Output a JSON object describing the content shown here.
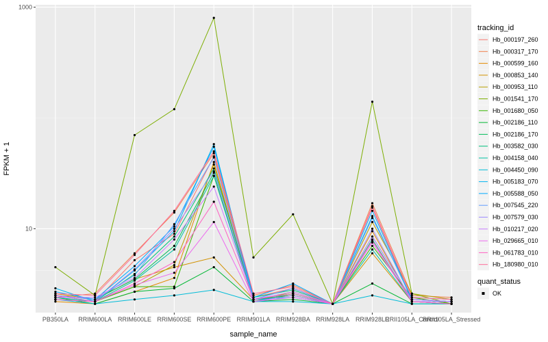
{
  "chart_data": {
    "type": "line",
    "title": "",
    "xlabel": "sample_name",
    "ylabel": "FPKM + 1",
    "y_scale": "log10",
    "ylim": [
      1.75,
      1050
    ],
    "y_ticks": [
      {
        "value": 10,
        "label": "10"
      },
      {
        "value": 1000,
        "label": "1000"
      }
    ],
    "grid": true,
    "panel_background": "#ebebeb",
    "categories": [
      "PB350LA",
      "RRIM600LA",
      "RRIM600LE",
      "RRIM600SE",
      "RRIM600PE",
      "RRIM901LA",
      "RRIM928BA",
      "RRIM928LA",
      "RRIM928LE",
      "RRII105LA_Control",
      "RRII105LA_Stressed"
    ],
    "legend": {
      "position": "right",
      "title": "tracking_id",
      "shape_title": "quant_status",
      "shape_entries": [
        "OK"
      ]
    },
    "series": [
      {
        "name": "Hb_000197_260",
        "color": "#F8766D",
        "values": [
          2.3,
          2.2,
          5.2,
          9.0,
          45,
          2.4,
          2.9,
          2.1,
          15.5,
          2.3,
          2.2
        ]
      },
      {
        "name": "Hb_000317_170",
        "color": "#F07F4B",
        "values": [
          2.4,
          2.6,
          6.0,
          14.0,
          48,
          2.5,
          3.1,
          2.1,
          17.0,
          2.5,
          2.4
        ]
      },
      {
        "name": "Hb_000599_160",
        "color": "#E38900",
        "values": [
          2.2,
          2.1,
          2.7,
          3.6,
          40,
          2.2,
          2.6,
          2.1,
          9.5,
          2.2,
          2.1
        ]
      },
      {
        "name": "Hb_000853_140",
        "color": "#D19100",
        "values": [
          2.6,
          2.3,
          3.5,
          4.5,
          5.5,
          2.3,
          2.5,
          2.1,
          6.0,
          2.2,
          2.1
        ]
      },
      {
        "name": "Hb_000953_110",
        "color": "#B59F00",
        "values": [
          2.3,
          2.2,
          3.0,
          4.7,
          38,
          2.2,
          2.7,
          2.1,
          11.5,
          2.6,
          2.3
        ]
      },
      {
        "name": "Hb_001541_170",
        "color": "#7CAE00",
        "values": [
          4.5,
          2.5,
          70,
          120,
          800,
          5.5,
          13.5,
          2.1,
          140,
          2.6,
          2.1
        ]
      },
      {
        "name": "Hb_001680_050",
        "color": "#39B600",
        "values": [
          2.5,
          2.2,
          3.0,
          3.0,
          30,
          2.3,
          2.5,
          2.1,
          7.0,
          2.4,
          2.1
        ]
      },
      {
        "name": "Hb_002186_110",
        "color": "#00B733",
        "values": [
          2.4,
          2.1,
          2.7,
          2.9,
          4.5,
          2.2,
          2.3,
          2.1,
          3.2,
          2.1,
          2.1
        ]
      },
      {
        "name": "Hb_002186_170",
        "color": "#00BC59",
        "values": [
          2.5,
          2.3,
          3.5,
          7.0,
          32,
          2.3,
          2.6,
          2.1,
          8.5,
          2.3,
          2.2
        ]
      },
      {
        "name": "Hb_003582_030",
        "color": "#00BF7D",
        "values": [
          2.3,
          2.2,
          3.9,
          8.5,
          35,
          2.4,
          2.8,
          2.1,
          8.0,
          2.2,
          2.1
        ]
      },
      {
        "name": "Hb_004158_040",
        "color": "#00C1A3",
        "values": [
          2.4,
          2.2,
          3.4,
          6.5,
          30,
          2.2,
          2.6,
          2.1,
          6.5,
          2.2,
          2.1
        ]
      },
      {
        "name": "Hb_004450_090",
        "color": "#00BCD8",
        "values": [
          2.3,
          2.1,
          2.3,
          2.5,
          2.8,
          2.2,
          2.2,
          2.1,
          2.5,
          2.1,
          2.1
        ]
      },
      {
        "name": "Hb_005183_070",
        "color": "#00B4EF",
        "values": [
          2.9,
          2.2,
          4.2,
          9.5,
          58,
          2.3,
          2.4,
          2.1,
          13.0,
          2.3,
          2.2
        ]
      },
      {
        "name": "Hb_005588_050",
        "color": "#00A9FF",
        "values": [
          2.7,
          2.3,
          4.6,
          10.5,
          55,
          2.4,
          3.2,
          2.1,
          14.5,
          2.3,
          2.2
        ]
      },
      {
        "name": "Hb_007545_220",
        "color": "#619CFF",
        "values": [
          2.5,
          2.3,
          3.8,
          11.0,
          44,
          2.3,
          2.9,
          2.1,
          12.5,
          2.4,
          2.3
        ]
      },
      {
        "name": "Hb_007579_030",
        "color": "#9F8CFF",
        "values": [
          2.3,
          2.2,
          4.3,
          10.0,
          33,
          2.2,
          2.5,
          2.1,
          10.0,
          2.2,
          2.2
        ]
      },
      {
        "name": "Hb_010217_020",
        "color": "#C77CFF",
        "values": [
          2.4,
          2.4,
          3.6,
          8.0,
          24,
          2.3,
          2.7,
          2.1,
          8.5,
          2.3,
          2.2
        ]
      },
      {
        "name": "Hb_029665_010",
        "color": "#EC69EF",
        "values": [
          2.5,
          2.2,
          3.1,
          4.0,
          11.5,
          2.2,
          2.4,
          2.1,
          7.5,
          2.2,
          2.1
        ]
      },
      {
        "name": "Hb_061783_010",
        "color": "#FF61C3",
        "values": [
          2.3,
          2.2,
          3.2,
          5.0,
          17.5,
          2.3,
          2.6,
          2.1,
          7.8,
          2.2,
          2.1
        ]
      },
      {
        "name": "Hb_180980_010",
        "color": "#FF6A98",
        "values": [
          2.6,
          2.5,
          5.8,
          14.5,
          50,
          2.6,
          3.0,
          2.1,
          16.0,
          2.4,
          2.3
        ]
      }
    ]
  }
}
